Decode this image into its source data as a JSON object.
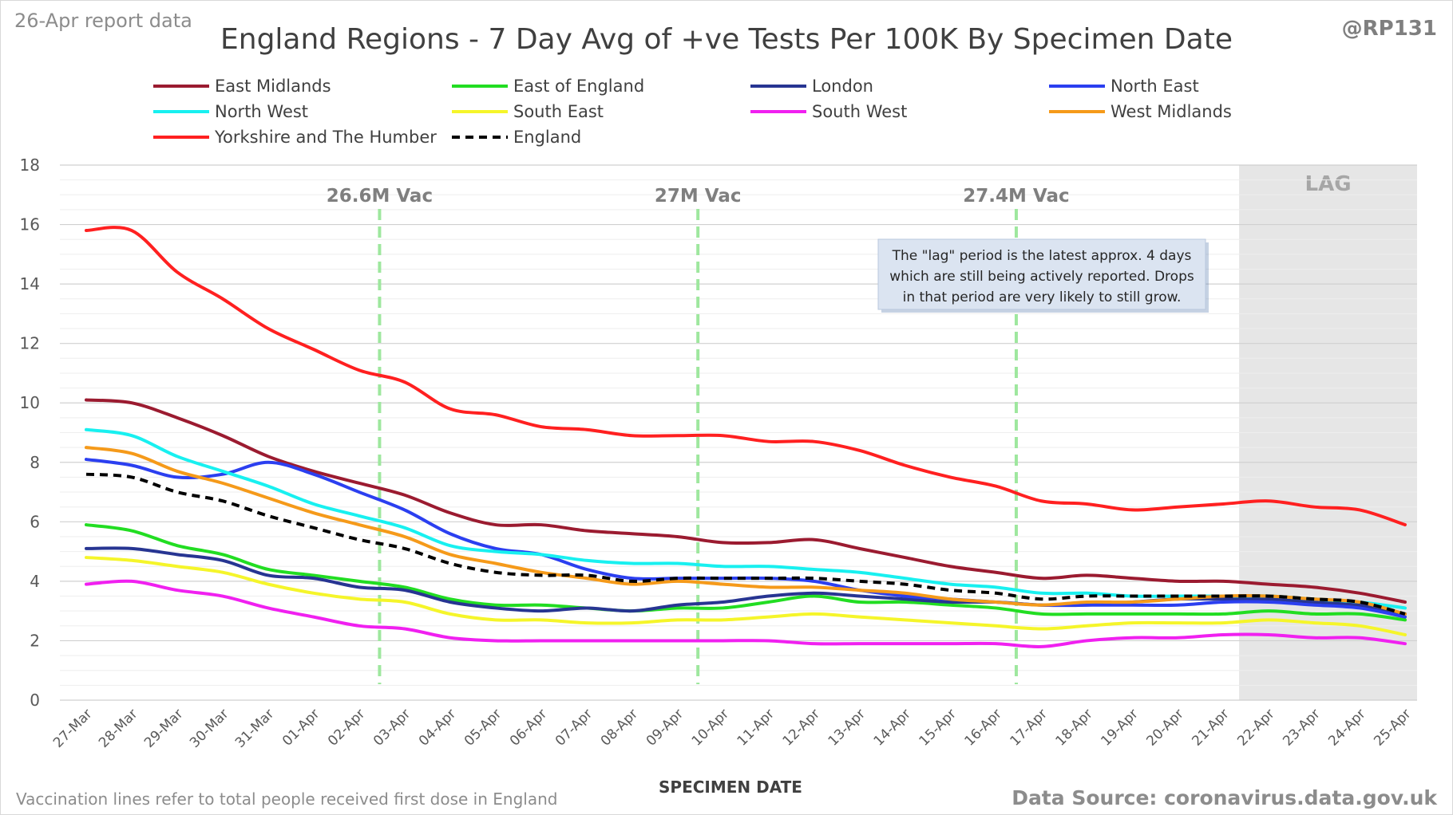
{
  "report_tag": "26-Apr report data",
  "handle": "@RP131",
  "footer_left": "Vaccination lines refer to total people received first dose in England",
  "footer_right": "Data Source: coronavirus.data.gov.uk",
  "note_lines": [
    "The \"lag\" period is the latest approx. 4 days",
    "which are still being actively reported.  Drops",
    "in that period are very likely to still grow."
  ],
  "chart_data": {
    "type": "line",
    "title": "England Regions - 7 Day Avg of +ve Tests Per 100K By Specimen Date",
    "xlabel": "SPECIMEN DATE",
    "ylabel": "",
    "ylim": [
      0,
      18
    ],
    "yticks": [
      0,
      2,
      4,
      6,
      8,
      10,
      12,
      14,
      16,
      18
    ],
    "grid": true,
    "legend_position": "top",
    "categories": [
      "27-Mar",
      "28-Mar",
      "29-Mar",
      "30-Mar",
      "31-Mar",
      "01-Apr",
      "02-Apr",
      "03-Apr",
      "04-Apr",
      "05-Apr",
      "06-Apr",
      "07-Apr",
      "08-Apr",
      "09-Apr",
      "10-Apr",
      "11-Apr",
      "12-Apr",
      "13-Apr",
      "14-Apr",
      "15-Apr",
      "16-Apr",
      "17-Apr",
      "18-Apr",
      "19-Apr",
      "20-Apr",
      "21-Apr",
      "22-Apr",
      "23-Apr",
      "24-Apr",
      "25-Apr"
    ],
    "series": [
      {
        "name": "East Midlands",
        "color": "#9b1b30",
        "dash": false,
        "values": [
          10.1,
          10.0,
          9.5,
          8.9,
          8.2,
          7.7,
          7.3,
          6.9,
          6.3,
          5.9,
          5.9,
          5.7,
          5.6,
          5.5,
          5.3,
          5.3,
          5.4,
          5.1,
          4.8,
          4.5,
          4.3,
          4.1,
          4.2,
          4.1,
          4.0,
          4.0,
          3.9,
          3.8,
          3.6,
          3.3
        ]
      },
      {
        "name": "East of England",
        "color": "#22dd22",
        "dash": false,
        "values": [
          5.9,
          5.7,
          5.2,
          4.9,
          4.4,
          4.2,
          4.0,
          3.8,
          3.4,
          3.2,
          3.2,
          3.1,
          3.0,
          3.1,
          3.1,
          3.3,
          3.5,
          3.3,
          3.3,
          3.2,
          3.1,
          2.9,
          2.9,
          2.9,
          2.9,
          2.9,
          3.0,
          2.9,
          2.9,
          2.7
        ]
      },
      {
        "name": "London",
        "color": "#273592",
        "dash": false,
        "values": [
          5.1,
          5.1,
          4.9,
          4.7,
          4.2,
          4.1,
          3.8,
          3.7,
          3.3,
          3.1,
          3.0,
          3.1,
          3.0,
          3.2,
          3.3,
          3.5,
          3.6,
          3.5,
          3.4,
          3.3,
          3.3,
          3.2,
          3.2,
          3.3,
          3.4,
          3.4,
          3.4,
          3.3,
          3.2,
          2.9
        ]
      },
      {
        "name": "North East",
        "color": "#2b3ff0",
        "dash": false,
        "values": [
          8.1,
          7.9,
          7.5,
          7.6,
          8.0,
          7.6,
          7.0,
          6.4,
          5.6,
          5.1,
          4.9,
          4.4,
          4.1,
          4.1,
          4.1,
          4.1,
          4.0,
          3.7,
          3.5,
          3.4,
          3.3,
          3.2,
          3.2,
          3.2,
          3.2,
          3.3,
          3.3,
          3.2,
          3.1,
          2.8
        ]
      },
      {
        "name": "North West",
        "color": "#18f0f0",
        "dash": false,
        "values": [
          9.1,
          8.9,
          8.2,
          7.7,
          7.2,
          6.6,
          6.2,
          5.8,
          5.2,
          5.0,
          4.9,
          4.7,
          4.6,
          4.6,
          4.5,
          4.5,
          4.4,
          4.3,
          4.1,
          3.9,
          3.8,
          3.6,
          3.6,
          3.5,
          3.5,
          3.5,
          3.5,
          3.4,
          3.3,
          3.1
        ]
      },
      {
        "name": "South East",
        "color": "#f5f52a",
        "dash": false,
        "values": [
          4.8,
          4.7,
          4.5,
          4.3,
          3.9,
          3.6,
          3.4,
          3.3,
          2.9,
          2.7,
          2.7,
          2.6,
          2.6,
          2.7,
          2.7,
          2.8,
          2.9,
          2.8,
          2.7,
          2.6,
          2.5,
          2.4,
          2.5,
          2.6,
          2.6,
          2.6,
          2.7,
          2.6,
          2.5,
          2.2
        ]
      },
      {
        "name": "South West",
        "color": "#f020f0",
        "dash": false,
        "values": [
          3.9,
          4.0,
          3.7,
          3.5,
          3.1,
          2.8,
          2.5,
          2.4,
          2.1,
          2.0,
          2.0,
          2.0,
          2.0,
          2.0,
          2.0,
          2.0,
          1.9,
          1.9,
          1.9,
          1.9,
          1.9,
          1.8,
          2.0,
          2.1,
          2.1,
          2.2,
          2.2,
          2.1,
          2.1,
          1.9
        ]
      },
      {
        "name": "West Midlands",
        "color": "#f59a1a",
        "dash": false,
        "values": [
          8.5,
          8.3,
          7.7,
          7.3,
          6.8,
          6.3,
          5.9,
          5.5,
          4.9,
          4.6,
          4.3,
          4.1,
          3.9,
          4.0,
          3.9,
          3.8,
          3.8,
          3.7,
          3.6,
          3.4,
          3.3,
          3.2,
          3.3,
          3.3,
          3.4,
          3.5,
          3.5,
          3.4,
          3.3,
          2.9
        ]
      },
      {
        "name": "Yorkshire and The Humber",
        "color": "#ff2020",
        "dash": false,
        "values": [
          15.8,
          15.8,
          14.4,
          13.5,
          12.5,
          11.8,
          11.1,
          10.7,
          9.8,
          9.6,
          9.2,
          9.1,
          8.9,
          8.9,
          8.9,
          8.7,
          8.7,
          8.4,
          7.9,
          7.5,
          7.2,
          6.7,
          6.6,
          6.4,
          6.5,
          6.6,
          6.7,
          6.5,
          6.4,
          5.9
        ]
      },
      {
        "name": "England",
        "color": "#000000",
        "dash": true,
        "values": [
          7.6,
          7.5,
          7.0,
          6.7,
          6.2,
          5.8,
          5.4,
          5.1,
          4.6,
          4.3,
          4.2,
          4.2,
          4.0,
          4.1,
          4.1,
          4.1,
          4.1,
          4.0,
          3.9,
          3.7,
          3.6,
          3.4,
          3.5,
          3.5,
          3.5,
          3.5,
          3.5,
          3.4,
          3.3,
          2.9
        ]
      }
    ],
    "vaccination_lines": [
      {
        "label": "26.6M Vac",
        "x": "02-Apr"
      },
      {
        "label": "27M Vac",
        "x": "09-Apr"
      },
      {
        "label": "27.4M Vac",
        "x": "16-Apr"
      }
    ],
    "lag_region": {
      "label": "LAG",
      "start": "21-Apr",
      "end": "25-Apr"
    }
  }
}
